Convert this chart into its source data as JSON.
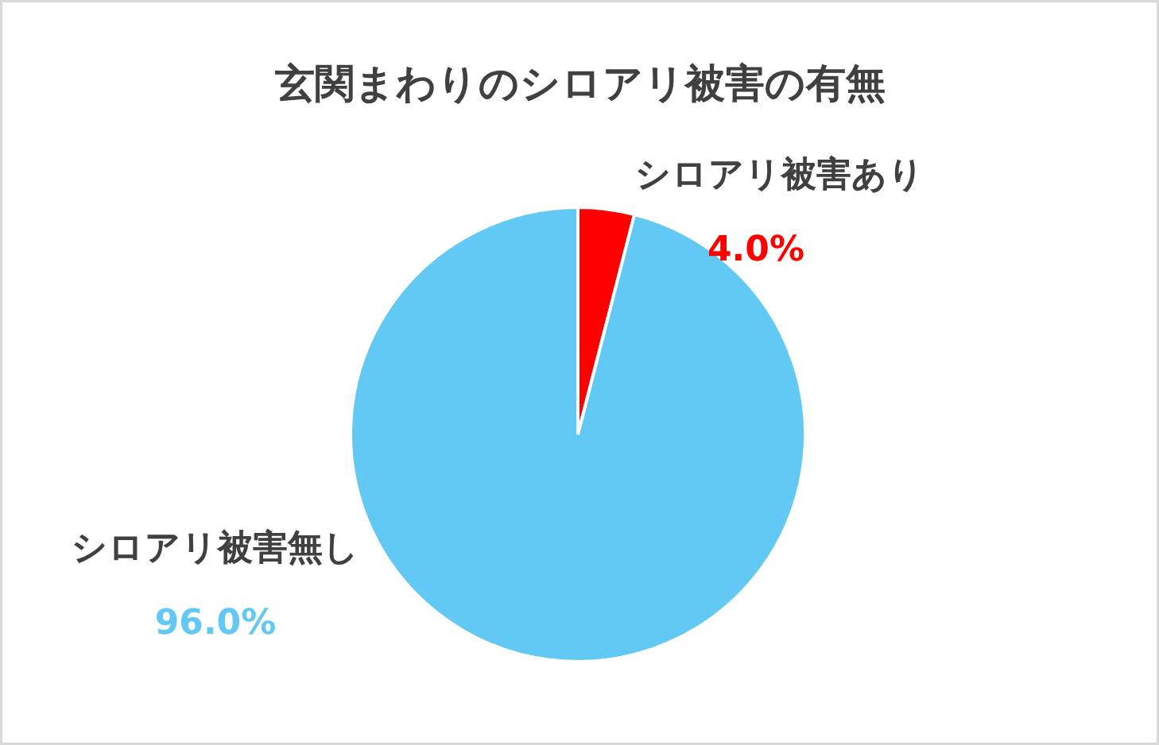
{
  "chart_data": {
    "type": "pie",
    "title": "玄関まわりのシロアリ被害の有無",
    "categories": [
      "シロアリ被害あり",
      "シロアリ被害無し"
    ],
    "values": [
      4.0,
      96.0
    ],
    "colors": [
      "#ff0000",
      "#62c9f4"
    ],
    "value_labels": [
      "4.0%",
      "96.0%"
    ]
  }
}
